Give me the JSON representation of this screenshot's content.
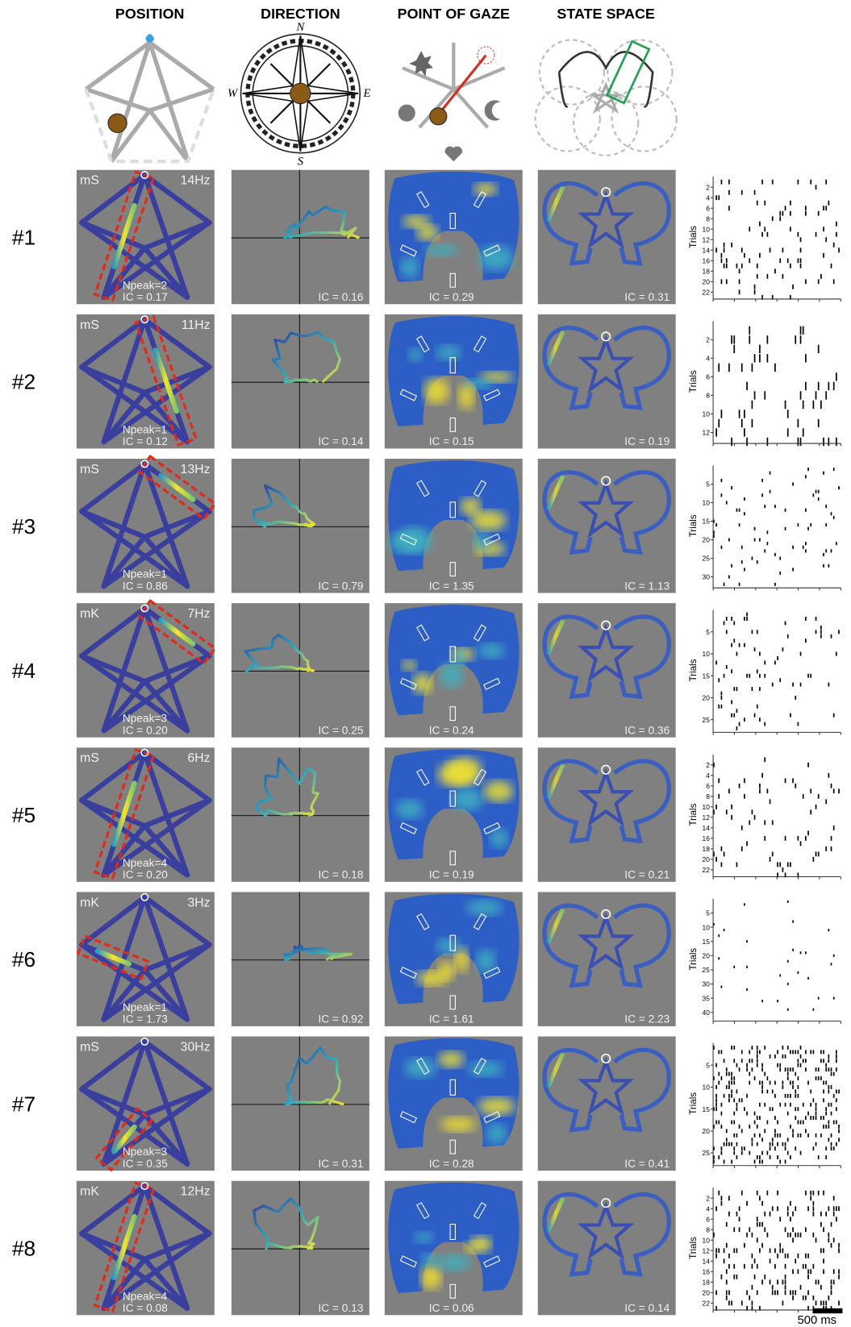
{
  "headers": [
    "POSITION",
    "DIRECTION",
    "POINT OF GAZE",
    "STATE SPACE"
  ],
  "compass": {
    "n": "N",
    "w": "W",
    "e": "E",
    "s": "S"
  },
  "rows": [
    {
      "label": "#1",
      "monkey": "mS",
      "freq": "14Hz",
      "npeak": "Npeak=2",
      "ic": [
        "IC = 0.17",
        "IC = 0.16",
        "IC = 0.29",
        "IC = 0.31"
      ],
      "trial_ticks": [
        2,
        4,
        6,
        8,
        10,
        12,
        14,
        16,
        18,
        20,
        22
      ]
    },
    {
      "label": "#2",
      "monkey": "mS",
      "freq": "11Hz",
      "npeak": "Npeak=1",
      "ic": [
        "IC = 0.12",
        "IC = 0.14",
        "IC = 0.15",
        "IC = 0.19"
      ],
      "trial_ticks": [
        2,
        4,
        6,
        8,
        10,
        12
      ]
    },
    {
      "label": "#3",
      "monkey": "mS",
      "freq": "13Hz",
      "npeak": "Npeak=1",
      "ic": [
        "IC = 0.86",
        "IC = 0.79",
        "IC = 1.35",
        "IC = 1.13"
      ],
      "trial_ticks": [
        5,
        10,
        15,
        20,
        25,
        30
      ]
    },
    {
      "label": "#4",
      "monkey": "mK",
      "freq": "7Hz",
      "npeak": "Npeak=3",
      "ic": [
        "IC = 0.20",
        "IC = 0.25",
        "IC = 0.24",
        "IC = 0.36"
      ],
      "trial_ticks": [
        5,
        10,
        15,
        20,
        25
      ]
    },
    {
      "label": "#5",
      "monkey": "mS",
      "freq": "6Hz",
      "npeak": "Npeak=4",
      "ic": [
        "IC = 0.20",
        "IC = 0.18",
        "IC = 0.19",
        "IC = 0.21"
      ],
      "trial_ticks": [
        2,
        4,
        6,
        8,
        10,
        12,
        14,
        16,
        18,
        20,
        22
      ]
    },
    {
      "label": "#6",
      "monkey": "mK",
      "freq": "3Hz",
      "npeak": "Npeak=1",
      "ic": [
        "IC = 1.73",
        "IC = 0.92",
        "IC = 1.61",
        "IC = 2.23"
      ],
      "trial_ticks": [
        5,
        10,
        15,
        20,
        25,
        30,
        35,
        40
      ]
    },
    {
      "label": "#7",
      "monkey": "mS",
      "freq": "30Hz",
      "npeak": "Npeak=3",
      "ic": [
        "IC = 0.35",
        "IC = 0.31",
        "IC = 0.28",
        "IC = 0.41"
      ],
      "trial_ticks": [
        5,
        10,
        15,
        20,
        25
      ]
    },
    {
      "label": "#8",
      "monkey": "mK",
      "freq": "12Hz",
      "npeak": "Npeak=4",
      "ic": [
        "IC = 0.08",
        "IC = 0.13",
        "IC = 0.06",
        "IC = 0.14"
      ],
      "trial_ticks": [
        2,
        4,
        6,
        8,
        10,
        12,
        14,
        16,
        18,
        20,
        22
      ]
    }
  ],
  "raster_axis_label": "Trials",
  "scale_bar": "500 ms"
}
